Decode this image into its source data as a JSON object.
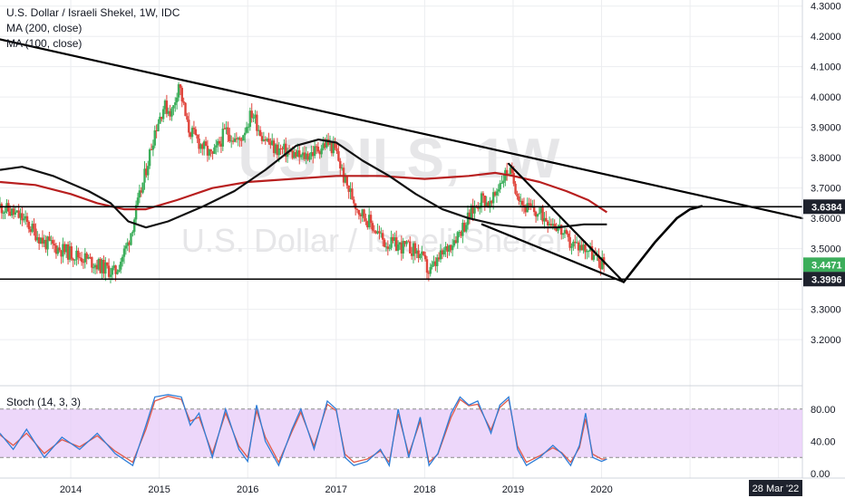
{
  "header": {
    "symbol_line": "U.S. Dollar / Israeli Shekel, 1W, IDC",
    "indicators": [
      "MA (200, close)",
      "MA (100, close)"
    ]
  },
  "watermark": {
    "symbol": "USDILS, 1W",
    "description": "U.S. Dollar / Israeli Shekel"
  },
  "stoch_panel": {
    "label": "Stoch (14, 3, 3)"
  },
  "colors": {
    "background": "#ffffff",
    "grid": "#ecedf0",
    "up_candle": "#3cae5b",
    "down_candle": "#e0453c",
    "ma200": "#b81f1f",
    "ma100": "#111111",
    "trendline": "#000000",
    "stoch_k": "#2f7ed8",
    "stoch_d": "#e05a4a",
    "stoch_band": "#e7c9f8",
    "price_label_bg": "#1e222d"
  },
  "chart_data": {
    "type": "candlestick",
    "symbol": "USDILS",
    "timeframe": "1W",
    "x_range": [
      2013.2,
      2022.27
    ],
    "y_range": [
      3.06,
      4.32
    ],
    "y_ticks": [
      "4.3000",
      "4.2000",
      "4.1000",
      "4.0000",
      "3.9000",
      "3.8000",
      "3.7000",
      "3.6000",
      "3.5000",
      "3.4000",
      "3.3000",
      "3.2000"
    ],
    "x_ticks": [
      {
        "label": "2014",
        "x": 2014
      },
      {
        "label": "2015",
        "x": 2015
      },
      {
        "label": "2016",
        "x": 2016
      },
      {
        "label": "2017",
        "x": 2017
      },
      {
        "label": "2018",
        "x": 2018
      },
      {
        "label": "2019",
        "x": 2019
      },
      {
        "label": "2020",
        "x": 2020
      }
    ],
    "date_badge": "28 Mar '22",
    "price_path": [
      [
        2013.2,
        3.64
      ],
      [
        2013.45,
        3.6
      ],
      [
        2013.7,
        3.52
      ],
      [
        2013.95,
        3.49
      ],
      [
        2014.15,
        3.47
      ],
      [
        2014.35,
        3.44
      ],
      [
        2014.5,
        3.42
      ],
      [
        2014.65,
        3.52
      ],
      [
        2014.82,
        3.72
      ],
      [
        2014.95,
        3.89
      ],
      [
        2015.05,
        3.97
      ],
      [
        2015.15,
        3.95
      ],
      [
        2015.22,
        4.05
      ],
      [
        2015.32,
        3.9
      ],
      [
        2015.45,
        3.85
      ],
      [
        2015.6,
        3.8
      ],
      [
        2015.75,
        3.89
      ],
      [
        2015.9,
        3.85
      ],
      [
        2016.05,
        3.95
      ],
      [
        2016.15,
        3.88
      ],
      [
        2016.3,
        3.83
      ],
      [
        2016.45,
        3.82
      ],
      [
        2016.6,
        3.8
      ],
      [
        2016.75,
        3.82
      ],
      [
        2016.9,
        3.85
      ],
      [
        2017.0,
        3.82
      ],
      [
        2017.1,
        3.72
      ],
      [
        2017.25,
        3.63
      ],
      [
        2017.4,
        3.58
      ],
      [
        2017.55,
        3.52
      ],
      [
        2017.7,
        3.51
      ],
      [
        2017.85,
        3.5
      ],
      [
        2017.95,
        3.48
      ],
      [
        2018.05,
        3.42
      ],
      [
        2018.15,
        3.46
      ],
      [
        2018.3,
        3.52
      ],
      [
        2018.45,
        3.58
      ],
      [
        2018.55,
        3.63
      ],
      [
        2018.65,
        3.67
      ],
      [
        2018.75,
        3.64
      ],
      [
        2018.85,
        3.72
      ],
      [
        2018.95,
        3.76
      ],
      [
        2019.02,
        3.71
      ],
      [
        2019.12,
        3.64
      ],
      [
        2019.25,
        3.62
      ],
      [
        2019.4,
        3.6
      ],
      [
        2019.52,
        3.57
      ],
      [
        2019.62,
        3.52
      ],
      [
        2019.75,
        3.51
      ],
      [
        2019.85,
        3.5
      ],
      [
        2019.95,
        3.46
      ],
      [
        2020.03,
        3.45
      ]
    ],
    "series": [
      {
        "name": "MA (200, close)",
        "color": "#b81f1f",
        "points": [
          [
            2013.2,
            3.72
          ],
          [
            2013.6,
            3.71
          ],
          [
            2014.0,
            3.68
          ],
          [
            2014.3,
            3.65
          ],
          [
            2014.6,
            3.63
          ],
          [
            2014.85,
            3.63
          ],
          [
            2015.2,
            3.66
          ],
          [
            2015.6,
            3.7
          ],
          [
            2016.0,
            3.72
          ],
          [
            2016.5,
            3.73
          ],
          [
            2017.0,
            3.74
          ],
          [
            2017.5,
            3.74
          ],
          [
            2018.0,
            3.73
          ],
          [
            2018.5,
            3.74
          ],
          [
            2018.8,
            3.75
          ],
          [
            2019.0,
            3.74
          ],
          [
            2019.3,
            3.72
          ],
          [
            2019.6,
            3.69
          ],
          [
            2019.85,
            3.66
          ],
          [
            2020.06,
            3.62
          ]
        ]
      },
      {
        "name": "MA (100, close)",
        "color": "#111111",
        "points": [
          [
            2013.2,
            3.76
          ],
          [
            2013.45,
            3.77
          ],
          [
            2013.8,
            3.74
          ],
          [
            2014.2,
            3.69
          ],
          [
            2014.45,
            3.65
          ],
          [
            2014.65,
            3.59
          ],
          [
            2014.85,
            3.57
          ],
          [
            2015.1,
            3.59
          ],
          [
            2015.5,
            3.64
          ],
          [
            2015.85,
            3.69
          ],
          [
            2016.2,
            3.76
          ],
          [
            2016.55,
            3.84
          ],
          [
            2016.8,
            3.86
          ],
          [
            2017.0,
            3.85
          ],
          [
            2017.3,
            3.79
          ],
          [
            2017.6,
            3.74
          ],
          [
            2017.9,
            3.68
          ],
          [
            2018.2,
            3.63
          ],
          [
            2018.5,
            3.6
          ],
          [
            2018.8,
            3.58
          ],
          [
            2019.1,
            3.57
          ],
          [
            2019.5,
            3.57
          ],
          [
            2019.8,
            3.58
          ],
          [
            2020.06,
            3.58
          ]
        ]
      }
    ],
    "drawings": [
      {
        "kind": "trendline",
        "points": [
          [
            2013.2,
            4.19
          ],
          [
            2022.27,
            3.6
          ]
        ]
      },
      {
        "kind": "horizontal",
        "y": 3.6384
      },
      {
        "kind": "horizontal",
        "y": 3.3996
      },
      {
        "kind": "trendline",
        "points": [
          [
            2018.65,
            3.58
          ],
          [
            2020.25,
            3.39
          ]
        ]
      },
      {
        "kind": "trendline",
        "points": [
          [
            2018.95,
            3.78
          ],
          [
            2020.25,
            3.39
          ]
        ]
      },
      {
        "kind": "projection",
        "points": [
          [
            2020.25,
            3.39
          ],
          [
            2020.6,
            3.52
          ],
          [
            2020.85,
            3.6
          ],
          [
            2021.0,
            3.63
          ],
          [
            2021.13,
            3.64
          ]
        ]
      }
    ],
    "price_labels": [
      {
        "value": "3.6384",
        "y": 3.6384,
        "bg": "#1e222d"
      },
      {
        "value": "3.4471",
        "y": 3.4471,
        "bg": "#3cae5b"
      },
      {
        "value": "3.3996",
        "y": 3.3996,
        "bg": "#1e222d"
      }
    ],
    "stochastic": {
      "name": "Stoch (14, 3, 3)",
      "y_range": [
        0,
        100
      ],
      "y_ticks": [
        "80.00",
        "40.00",
        "0.00"
      ],
      "band": [
        20,
        80
      ],
      "k": [
        [
          2013.2,
          50
        ],
        [
          2013.35,
          30
        ],
        [
          2013.5,
          55
        ],
        [
          2013.7,
          20
        ],
        [
          2013.9,
          45
        ],
        [
          2014.1,
          30
        ],
        [
          2014.3,
          50
        ],
        [
          2014.5,
          25
        ],
        [
          2014.7,
          10
        ],
        [
          2014.85,
          60
        ],
        [
          2014.95,
          95
        ],
        [
          2015.1,
          98
        ],
        [
          2015.25,
          95
        ],
        [
          2015.35,
          60
        ],
        [
          2015.45,
          75
        ],
        [
          2015.6,
          20
        ],
        [
          2015.75,
          80
        ],
        [
          2015.9,
          30
        ],
        [
          2016.0,
          15
        ],
        [
          2016.1,
          85
        ],
        [
          2016.2,
          40
        ],
        [
          2016.35,
          10
        ],
        [
          2016.5,
          55
        ],
        [
          2016.6,
          80
        ],
        [
          2016.75,
          30
        ],
        [
          2016.9,
          90
        ],
        [
          2017.0,
          80
        ],
        [
          2017.1,
          20
        ],
        [
          2017.2,
          10
        ],
        [
          2017.35,
          15
        ],
        [
          2017.5,
          30
        ],
        [
          2017.6,
          10
        ],
        [
          2017.7,
          80
        ],
        [
          2017.82,
          20
        ],
        [
          2017.95,
          70
        ],
        [
          2018.05,
          10
        ],
        [
          2018.15,
          25
        ],
        [
          2018.3,
          75
        ],
        [
          2018.4,
          95
        ],
        [
          2018.5,
          85
        ],
        [
          2018.6,
          90
        ],
        [
          2018.75,
          50
        ],
        [
          2018.85,
          85
        ],
        [
          2018.95,
          95
        ],
        [
          2019.05,
          30
        ],
        [
          2019.15,
          10
        ],
        [
          2019.3,
          20
        ],
        [
          2019.45,
          35
        ],
        [
          2019.55,
          25
        ],
        [
          2019.65,
          10
        ],
        [
          2019.75,
          35
        ],
        [
          2019.82,
          75
        ],
        [
          2019.9,
          20
        ],
        [
          2020.0,
          15
        ],
        [
          2020.06,
          18
        ]
      ],
      "d": [
        [
          2013.2,
          48
        ],
        [
          2013.35,
          35
        ],
        [
          2013.5,
          50
        ],
        [
          2013.7,
          25
        ],
        [
          2013.9,
          42
        ],
        [
          2014.1,
          33
        ],
        [
          2014.3,
          47
        ],
        [
          2014.5,
          28
        ],
        [
          2014.7,
          14
        ],
        [
          2014.85,
          55
        ],
        [
          2014.95,
          90
        ],
        [
          2015.1,
          96
        ],
        [
          2015.25,
          92
        ],
        [
          2015.35,
          65
        ],
        [
          2015.45,
          70
        ],
        [
          2015.6,
          25
        ],
        [
          2015.75,
          75
        ],
        [
          2015.9,
          34
        ],
        [
          2016.0,
          20
        ],
        [
          2016.1,
          78
        ],
        [
          2016.2,
          45
        ],
        [
          2016.35,
          14
        ],
        [
          2016.5,
          52
        ],
        [
          2016.6,
          76
        ],
        [
          2016.75,
          34
        ],
        [
          2016.9,
          86
        ],
        [
          2017.0,
          78
        ],
        [
          2017.1,
          24
        ],
        [
          2017.2,
          14
        ],
        [
          2017.35,
          18
        ],
        [
          2017.5,
          28
        ],
        [
          2017.6,
          14
        ],
        [
          2017.7,
          74
        ],
        [
          2017.82,
          24
        ],
        [
          2017.95,
          65
        ],
        [
          2018.05,
          14
        ],
        [
          2018.15,
          24
        ],
        [
          2018.3,
          70
        ],
        [
          2018.4,
          92
        ],
        [
          2018.5,
          84
        ],
        [
          2018.6,
          86
        ],
        [
          2018.75,
          54
        ],
        [
          2018.85,
          82
        ],
        [
          2018.95,
          92
        ],
        [
          2019.05,
          34
        ],
        [
          2019.15,
          14
        ],
        [
          2019.3,
          22
        ],
        [
          2019.45,
          32
        ],
        [
          2019.55,
          26
        ],
        [
          2019.65,
          14
        ],
        [
          2019.75,
          32
        ],
        [
          2019.82,
          68
        ],
        [
          2019.9,
          24
        ],
        [
          2020.0,
          18
        ],
        [
          2020.06,
          18
        ]
      ]
    }
  }
}
